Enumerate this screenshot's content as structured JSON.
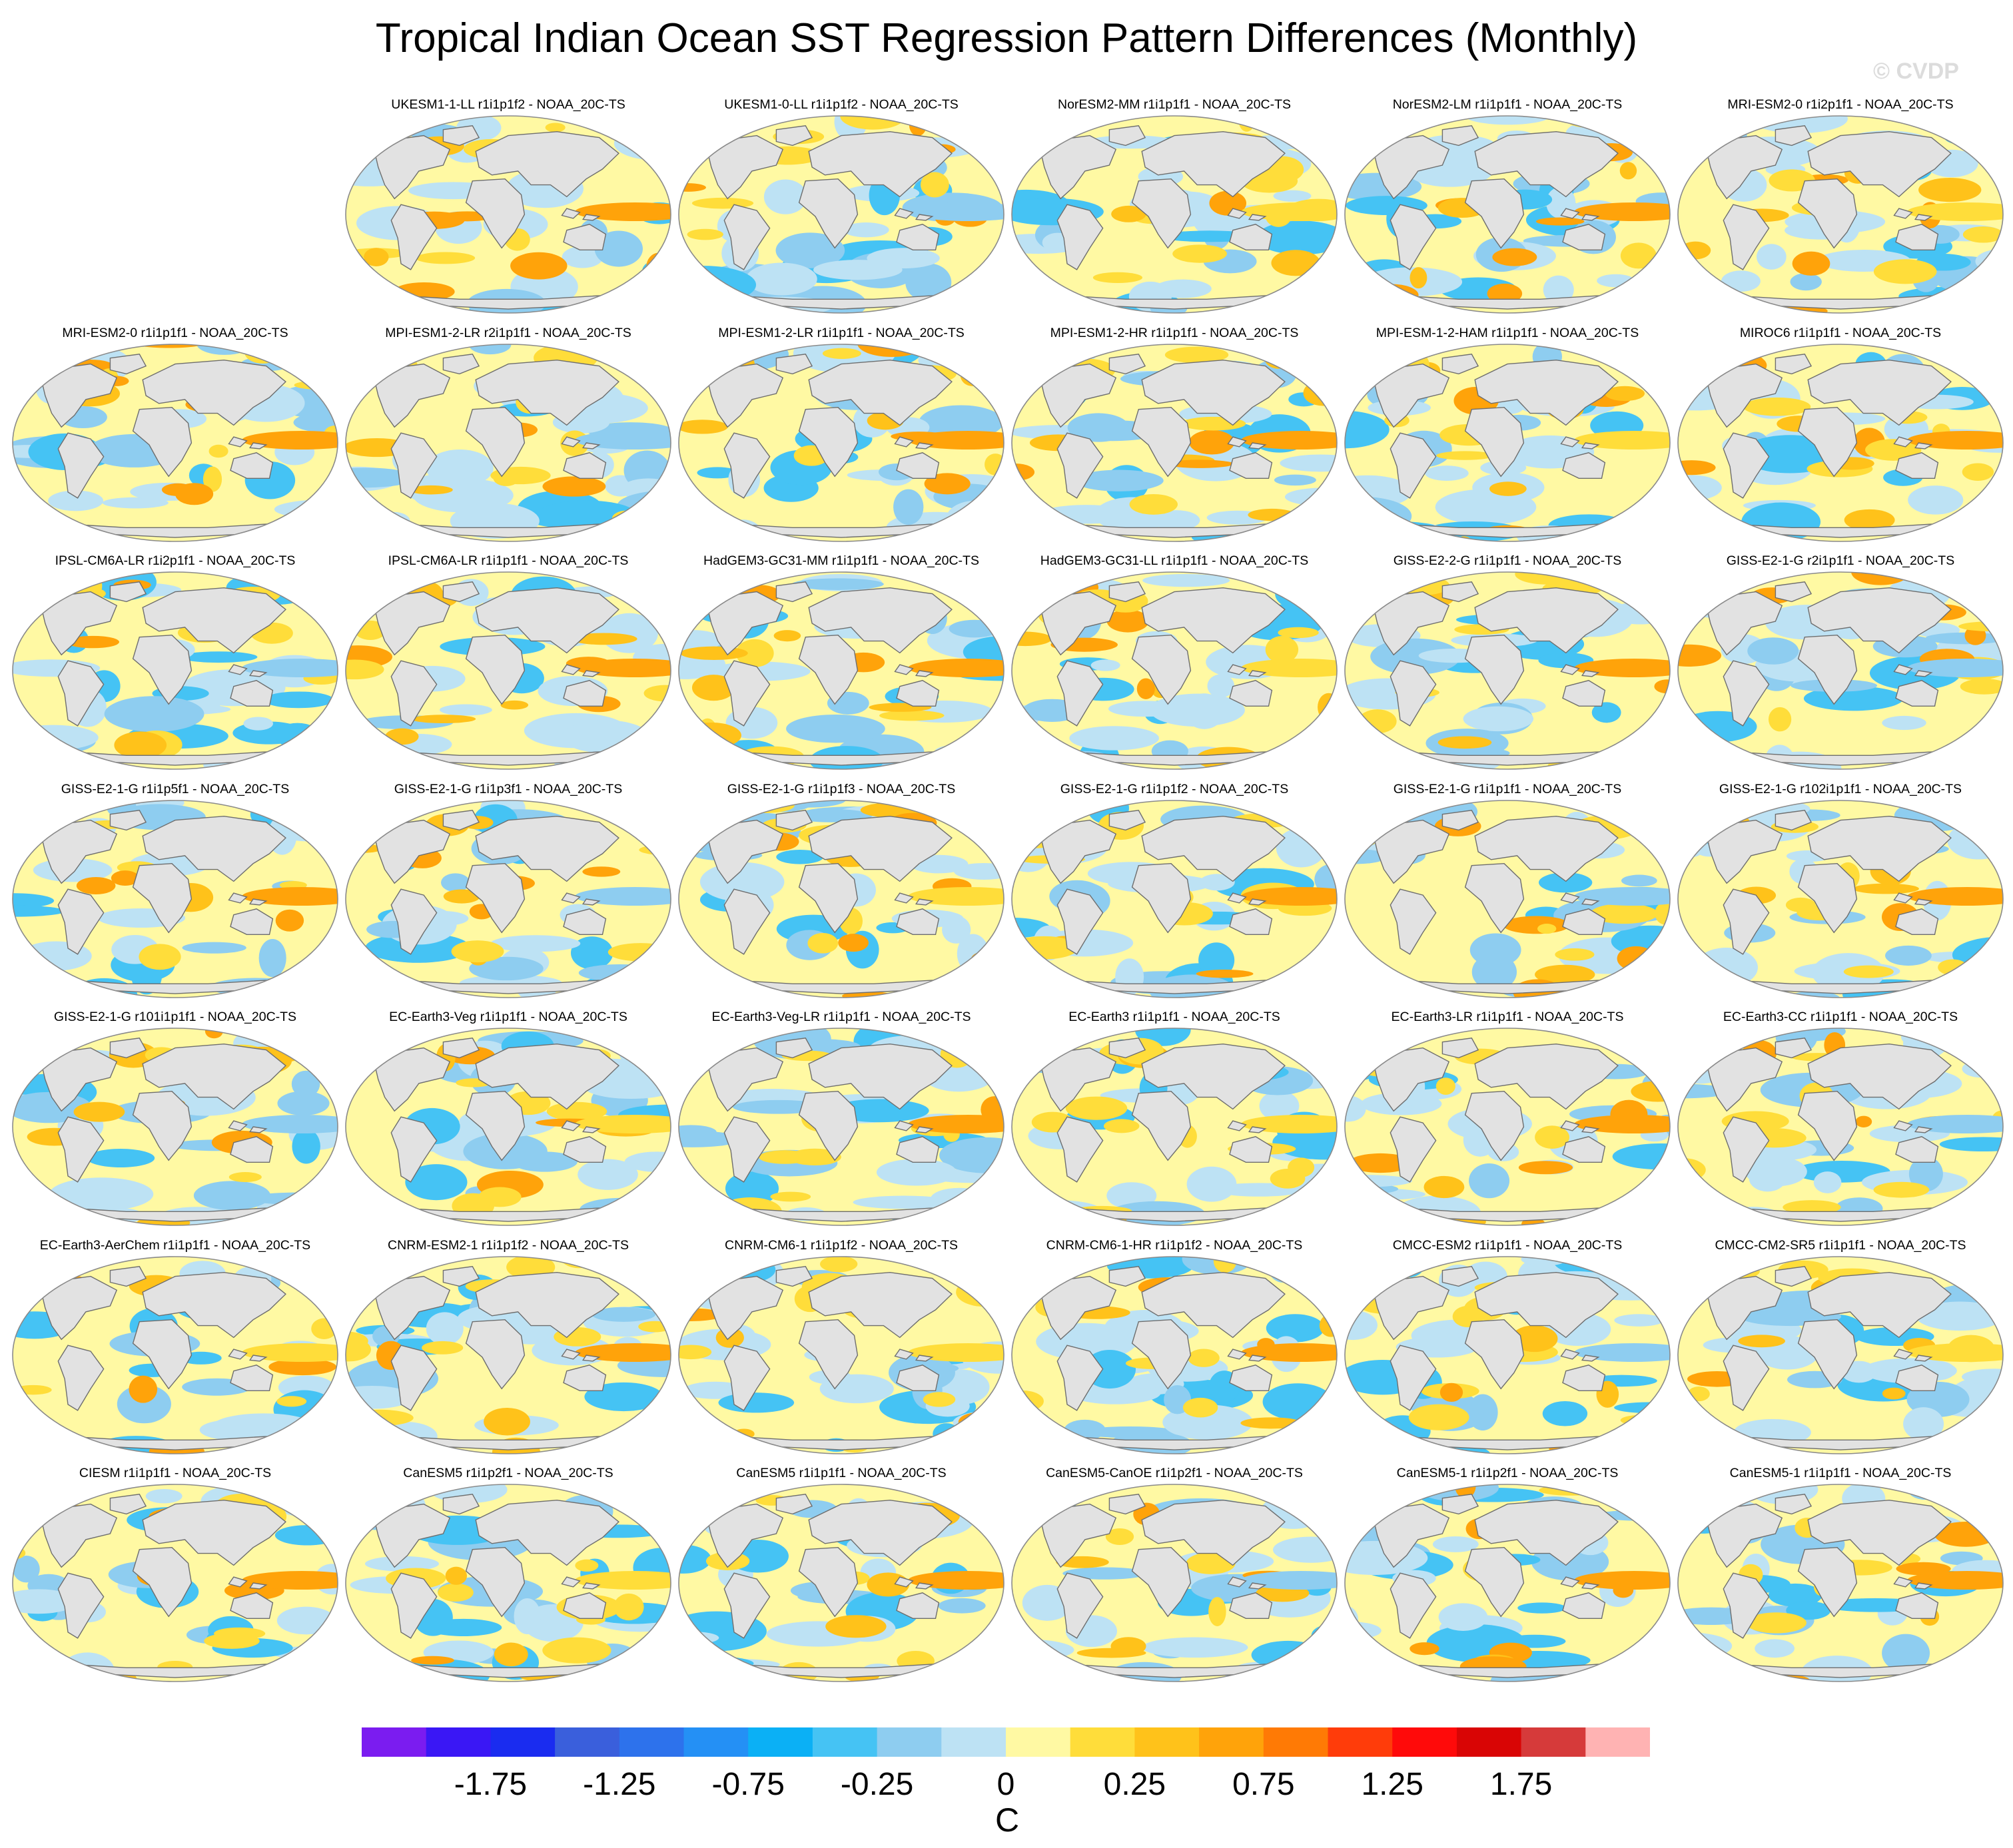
{
  "title": "Tropical Indian Ocean SST Regression Pattern Differences (Monthly)",
  "watermark": "© CVDP",
  "colors": {
    "land": "#e2e2e2",
    "coast": "#6e6e6e",
    "ocean_base": "#fff9a3"
  },
  "panels": [
    {
      "label": "UKESM1-1-LL r1i1p1f2 - NOAA_20C-TS"
    },
    {
      "label": "UKESM1-0-LL r1i1p1f2 - NOAA_20C-TS"
    },
    {
      "label": "NorESM2-MM r1i1p1f1 - NOAA_20C-TS"
    },
    {
      "label": "NorESM2-LM r1i1p1f1 - NOAA_20C-TS"
    },
    {
      "label": "MRI-ESM2-0 r1i2p1f1 - NOAA_20C-TS"
    },
    {
      "label": "MRI-ESM2-0 r1i1p1f1 - NOAA_20C-TS"
    },
    {
      "label": "MPI-ESM1-2-LR r2i1p1f1 - NOAA_20C-TS"
    },
    {
      "label": "MPI-ESM1-2-LR r1i1p1f1 - NOAA_20C-TS"
    },
    {
      "label": "MPI-ESM1-2-HR r1i1p1f1 - NOAA_20C-TS"
    },
    {
      "label": "MPI-ESM-1-2-HAM r1i1p1f1 - NOAA_20C-TS"
    },
    {
      "label": "MIROC6 r1i1p1f1 - NOAA_20C-TS"
    },
    {
      "label": "IPSL-CM6A-LR r1i2p1f1 - NOAA_20C-TS"
    },
    {
      "label": "IPSL-CM6A-LR r1i1p1f1 - NOAA_20C-TS"
    },
    {
      "label": "HadGEM3-GC31-MM r1i1p1f1 - NOAA_20C-TS"
    },
    {
      "label": "HadGEM3-GC31-LL r1i1p1f1 - NOAA_20C-TS"
    },
    {
      "label": "GISS-E2-2-G r1i1p1f1 - NOAA_20C-TS"
    },
    {
      "label": "GISS-E2-1-G r2i1p1f1 - NOAA_20C-TS"
    },
    {
      "label": "GISS-E2-1-G r1i1p5f1 - NOAA_20C-TS"
    },
    {
      "label": "GISS-E2-1-G r1i1p3f1 - NOAA_20C-TS"
    },
    {
      "label": "GISS-E2-1-G r1i1p1f3 - NOAA_20C-TS"
    },
    {
      "label": "GISS-E2-1-G r1i1p1f2 - NOAA_20C-TS"
    },
    {
      "label": "GISS-E2-1-G r1i1p1f1 - NOAA_20C-TS"
    },
    {
      "label": "GISS-E2-1-G r102i1p1f1 - NOAA_20C-TS"
    },
    {
      "label": "GISS-E2-1-G r101i1p1f1 - NOAA_20C-TS"
    },
    {
      "label": "EC-Earth3-Veg r1i1p1f1 - NOAA_20C-TS"
    },
    {
      "label": "EC-Earth3-Veg-LR r1i1p1f1 - NOAA_20C-TS"
    },
    {
      "label": "EC-Earth3 r1i1p1f1 - NOAA_20C-TS"
    },
    {
      "label": "EC-Earth3-LR r1i1p1f1 - NOAA_20C-TS"
    },
    {
      "label": "EC-Earth3-CC r1i1p1f1 - NOAA_20C-TS"
    },
    {
      "label": "EC-Earth3-AerChem r1i1p1f1 - NOAA_20C-TS"
    },
    {
      "label": "CNRM-ESM2-1 r1i1p1f2 - NOAA_20C-TS"
    },
    {
      "label": "CNRM-CM6-1 r1i1p1f2 - NOAA_20C-TS"
    },
    {
      "label": "CNRM-CM6-1-HR r1i1p1f2 - NOAA_20C-TS"
    },
    {
      "label": "CMCC-ESM2 r1i1p1f1 - NOAA_20C-TS"
    },
    {
      "label": "CMCC-CM2-SR5 r1i1p1f1 - NOAA_20C-TS"
    },
    {
      "label": "CIESM r1i1p1f1 - NOAA_20C-TS"
    },
    {
      "label": "CanESM5 r1i1p2f1 - NOAA_20C-TS"
    },
    {
      "label": "CanESM5 r1i1p1f1 - NOAA_20C-TS"
    },
    {
      "label": "CanESM5-CanOE r1i1p2f1 - NOAA_20C-TS"
    },
    {
      "label": "CanESM5-1 r1i1p2f1 - NOAA_20C-TS"
    },
    {
      "label": "CanESM5-1 r1i1p1f1 - NOAA_20C-TS"
    }
  ],
  "colorbar": {
    "unit": "C",
    "tick_labels": [
      "-1.75",
      "-1.25",
      "-0.75",
      "-0.25",
      "0",
      "0.25",
      "0.75",
      "1.25",
      "1.75"
    ],
    "colors": [
      "#7b1cf0",
      "#3a17f5",
      "#1a2cf0",
      "#3a5fdc",
      "#2d72ec",
      "#2490f5",
      "#0bb0f5",
      "#45c3f4",
      "#8ecdf0",
      "#bde2f4",
      "#fff9a3",
      "#ffdd3a",
      "#ffc21a",
      "#ffa30a",
      "#ff7a05",
      "#ff3c0a",
      "#ff0a0a",
      "#d90505",
      "#d63a3a",
      "#ffb3b3"
    ]
  }
}
